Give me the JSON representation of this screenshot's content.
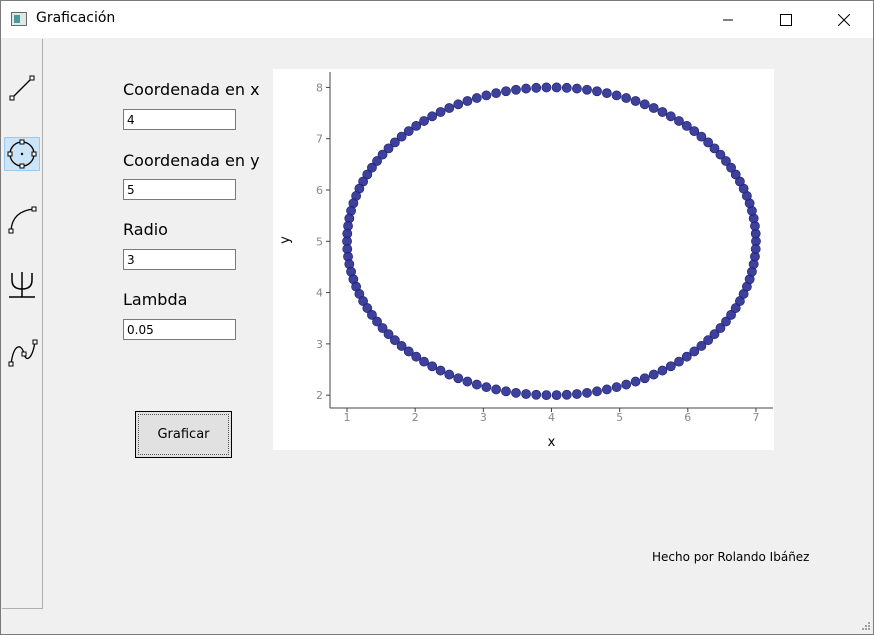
{
  "window": {
    "title": "Graficación",
    "controls": [
      "minimize",
      "maximize",
      "close"
    ]
  },
  "toolbar": {
    "tools": [
      {
        "name": "line-tool-icon",
        "active": false
      },
      {
        "name": "circle-tool-icon",
        "active": true
      },
      {
        "name": "arc-tool-icon",
        "active": false
      },
      {
        "name": "psi-tool-icon",
        "active": false
      },
      {
        "name": "curve-tool-icon",
        "active": false
      }
    ]
  },
  "form": {
    "x_label": "Coordenada en x",
    "x_value": "4",
    "y_label": "Coordenada en y",
    "y_value": "5",
    "radius_label": "Radio",
    "radius_value": "3",
    "lambda_label": "Lambda",
    "lambda_value": "0.05",
    "plot_button": "Graficar"
  },
  "chart_data": {
    "type": "scatter",
    "title": "",
    "xlabel": "x",
    "ylabel": "y",
    "xlim": [
      0.75,
      7.25
    ],
    "ylim": [
      1.75,
      8.3
    ],
    "xticks": [
      1,
      2,
      3,
      4,
      5,
      6,
      7
    ],
    "yticks": [
      2,
      3,
      4,
      5,
      6,
      7,
      8
    ],
    "grid": false,
    "marker_color": "#2e3192",
    "series": [
      {
        "center_x": 4,
        "center_y": 5,
        "radius": 3,
        "points": 126
      }
    ]
  },
  "footer": {
    "credit": "Hecho por Rolando Ibáñez"
  }
}
